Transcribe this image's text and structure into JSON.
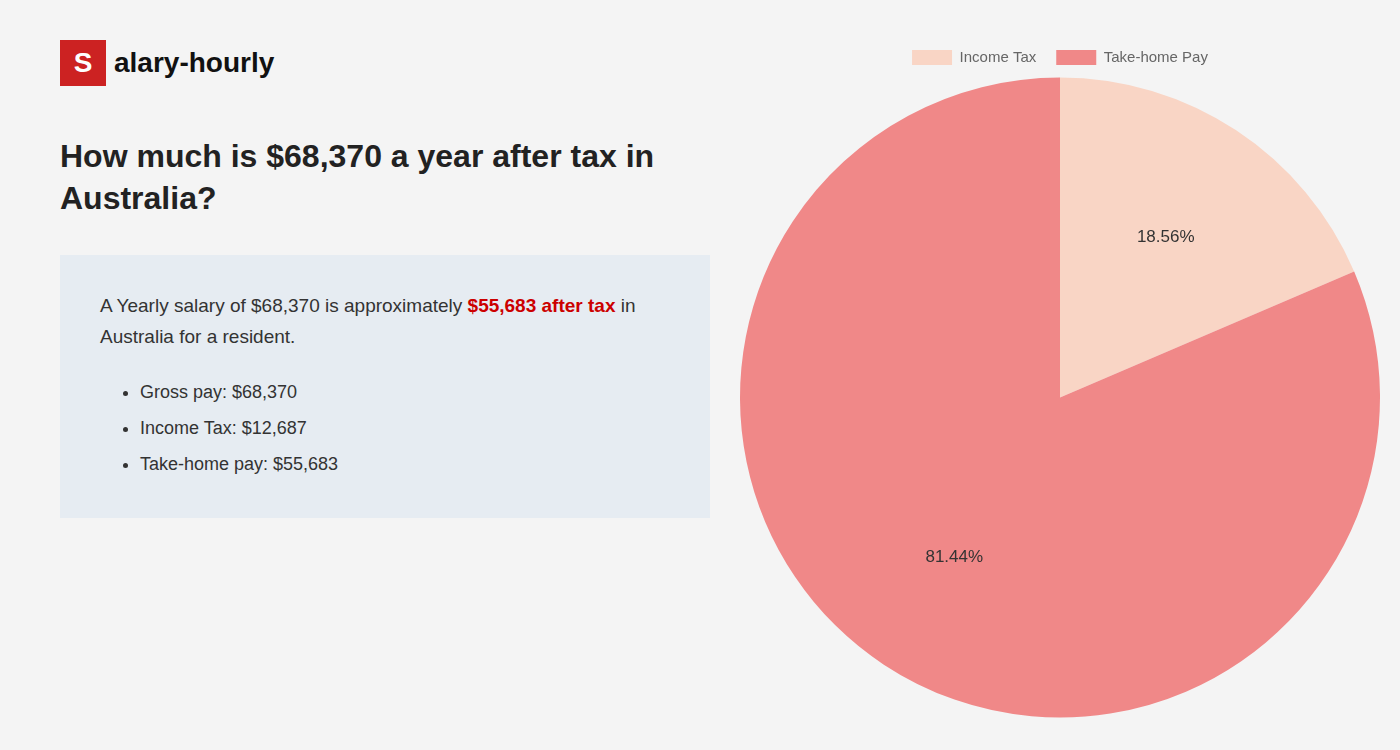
{
  "chart_data": {
    "type": "pie",
    "title": "How much is $68,370 a year after tax in\nAustralia?",
    "categories": [
      "Income Tax",
      "Take-home Pay"
    ],
    "values": [
      18.56,
      81.44
    ],
    "value_labels": [
      "18.56%",
      "81.44%"
    ],
    "colors": [
      "#f9d5c5",
      "#f08888"
    ],
    "data_labels": true,
    "legend": "top",
    "annotations": {
      "logo": [
        {
          "text": "S",
          "color": "#cc2222"
        },
        {
          "text": "alary-hourly"
        }
      ],
      "summary": [
        [
          {
            "text": "A Yearly salary of $68,370 is approximately "
          },
          {
            "text": "$55,683 after tax",
            "color": "#cc0000"
          },
          {
            "text": " in"
          }
        ],
        [
          {
            "text": "Australia for a resident."
          }
        ]
      ],
      "bullets": [
        "Gross pay: $68,370",
        "Income Tax: $12,687",
        "Take-home pay: $55,683"
      ]
    }
  }
}
